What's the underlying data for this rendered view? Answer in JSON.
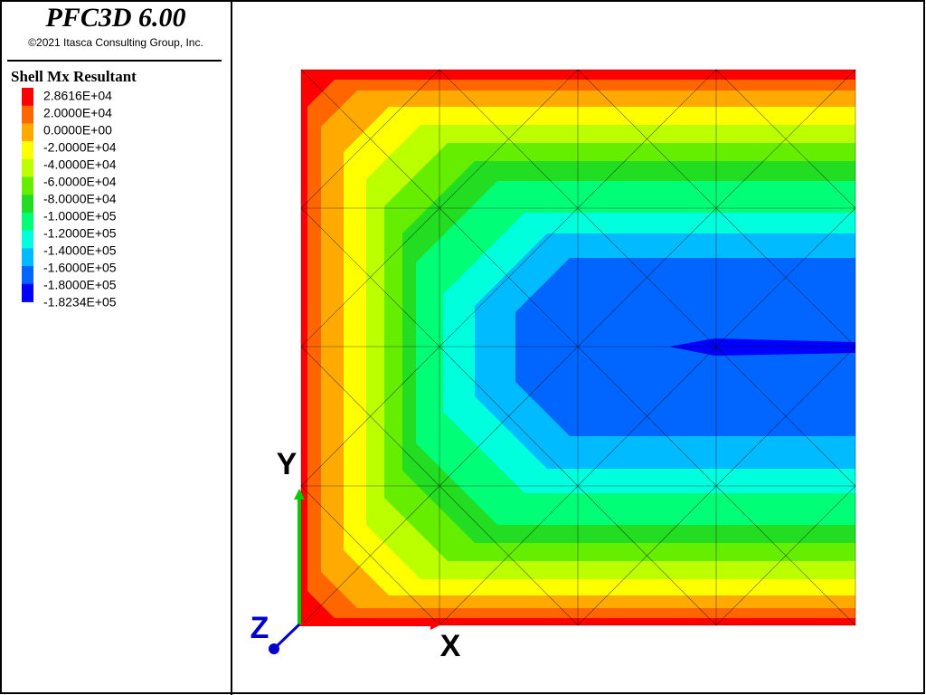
{
  "header": {
    "title": "PFC3D 6.00",
    "copyright": "©2021 Itasca Consulting Group, Inc."
  },
  "legend": {
    "title": "Shell Mx Resultant",
    "labels": [
      "2.8616E+04",
      "2.0000E+04",
      "0.0000E+00",
      "-2.0000E+04",
      "-4.0000E+04",
      "-6.0000E+04",
      "-8.0000E+04",
      "-1.0000E+05",
      "-1.2000E+05",
      "-1.4000E+05",
      "-1.6000E+05",
      "-1.8000E+05",
      "-1.8234E+05"
    ],
    "colors": [
      "#ff0000",
      "#ff6600",
      "#ffaa00",
      "#ffff00",
      "#bbff00",
      "#66ee00",
      "#22dd22",
      "#00ff77",
      "#00ffdd",
      "#00bbff",
      "#0066ff",
      "#0000ff"
    ]
  },
  "axes": {
    "x": "X",
    "y": "Y",
    "z": "Z"
  }
}
